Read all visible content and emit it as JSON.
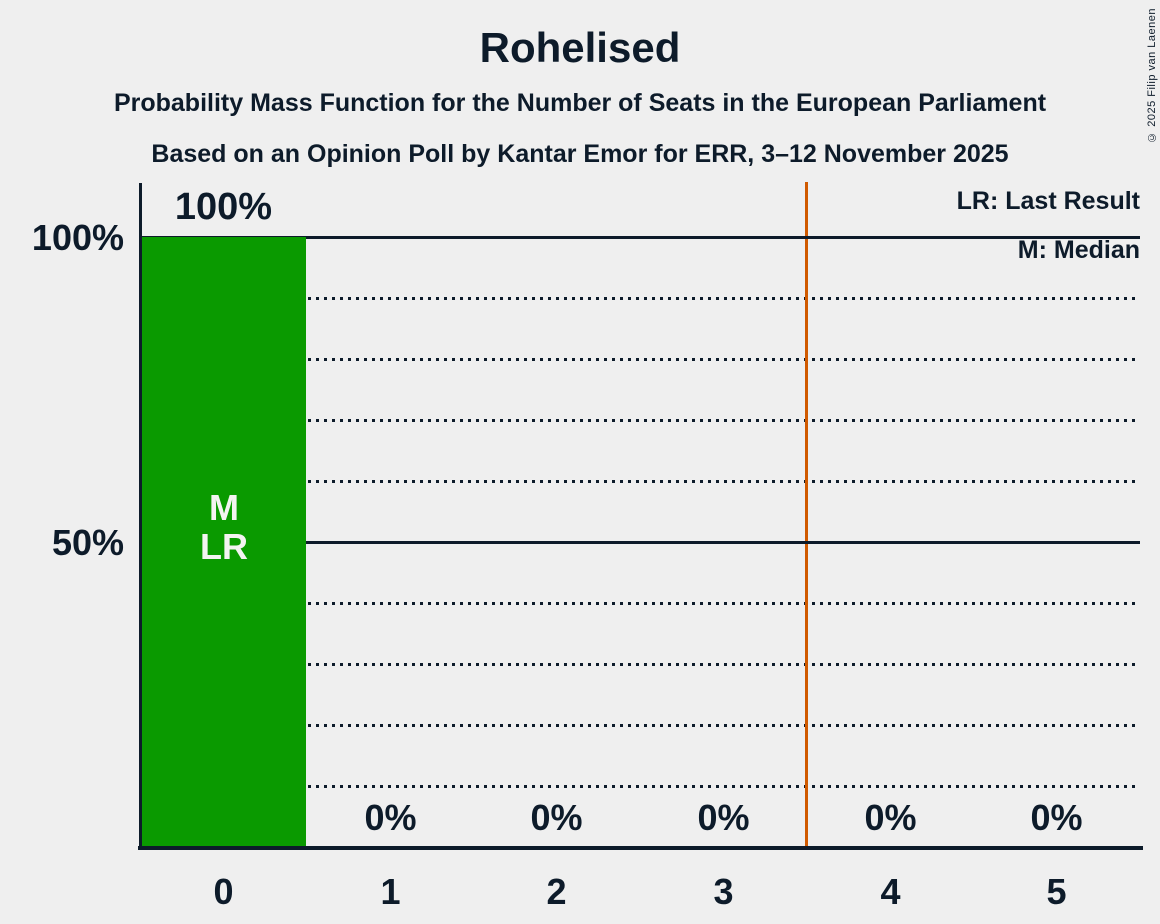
{
  "title": "Rohelised",
  "subtitle": "Probability Mass Function for the Number of Seats in the European Parliament",
  "source_line": "Based on an Opinion Poll by Kantar Emor for ERR, 3–12 November 2025",
  "copyright": "© 2025 Filip van Laenen",
  "legend": {
    "last_result": "LR: Last Result",
    "median": "M: Median"
  },
  "y_axis": {
    "tick_100": "100%",
    "tick_50": "50%"
  },
  "bar_annotations": {
    "median": "M",
    "last_result": "LR"
  },
  "chart_data": {
    "type": "bar",
    "title": "Rohelised",
    "subtitle": "Probability Mass Function for the Number of Seats in the European Parliament",
    "source": "Based on an Opinion Poll by Kantar Emor for ERR, 3–12 November 2025",
    "categories": [
      "0",
      "1",
      "2",
      "3",
      "4",
      "5"
    ],
    "values": [
      100,
      0,
      0,
      0,
      0,
      0
    ],
    "value_labels": [
      "100%",
      "0%",
      "0%",
      "0%",
      "0%",
      "0%"
    ],
    "xlabel": "",
    "ylabel": "",
    "ylim": [
      0,
      100
    ],
    "y_tick_labels": [
      "100%",
      "50%"
    ],
    "grid": "horizontal dotted every 10%, solid at 50% and 100%",
    "legend_entries": [
      "LR: Last Result",
      "M: Median"
    ],
    "legend_position": "top-right",
    "median_seats": 0,
    "last_result_seats": 0,
    "threshold_line_x": 3.5,
    "colors": {
      "bar": "#0a9a00",
      "threshold_line": "#d05a00",
      "text": "#0d1b2a",
      "background": "#efefef",
      "bar_text": "#f4f4f2"
    }
  }
}
